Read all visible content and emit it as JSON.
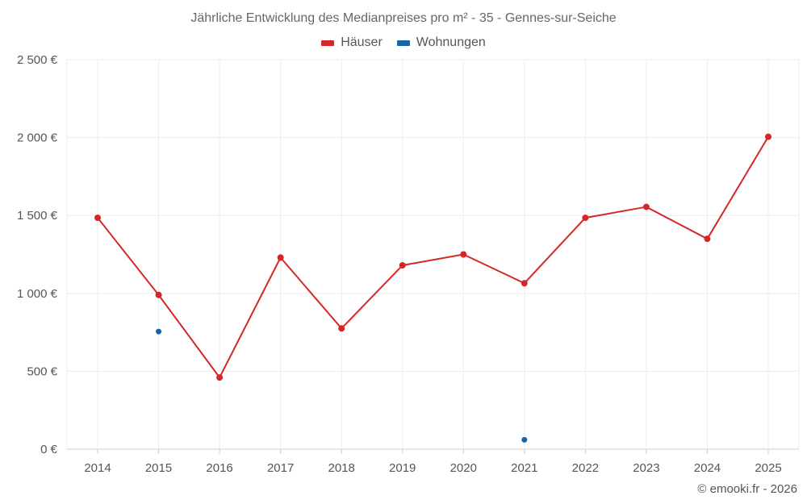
{
  "chart_data": {
    "type": "line",
    "title": "Jährliche Entwicklung des Medianpreises pro m² - 35 - Gennes-sur-Seiche",
    "categories": [
      "2014",
      "2015",
      "2016",
      "2017",
      "2018",
      "2019",
      "2020",
      "2021",
      "2022",
      "2023",
      "2024",
      "2025"
    ],
    "ylim": [
      0,
      2500
    ],
    "yticks": [
      0,
      500,
      1000,
      1500,
      2000,
      2500
    ],
    "ytick_labels": [
      "0 €",
      "500 €",
      "1 000 €",
      "1 500 €",
      "2 000 €",
      "2 500 €"
    ],
    "grid": true,
    "legend_position": "top-center",
    "series": [
      {
        "name": "Häuser",
        "color": "#d62728",
        "line": true,
        "values": [
          1485,
          990,
          460,
          1230,
          775,
          1180,
          1250,
          1065,
          1485,
          1555,
          1350,
          2005
        ]
      },
      {
        "name": "Wohnungen",
        "color": "#1565a8",
        "line": false,
        "values": [
          null,
          755,
          null,
          null,
          null,
          null,
          null,
          60,
          null,
          null,
          null,
          null
        ]
      }
    ]
  },
  "credit": "© emooki.fr - 2026"
}
